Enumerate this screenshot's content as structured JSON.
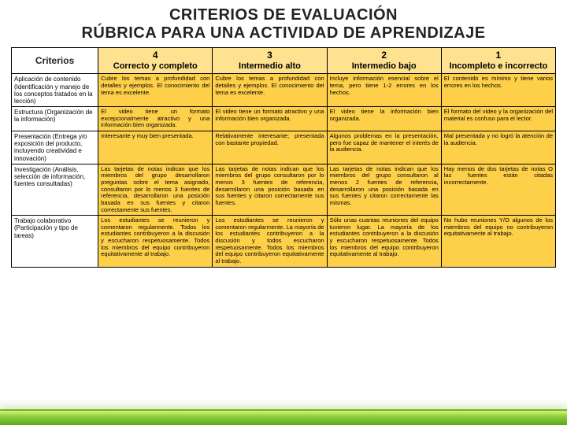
{
  "title_line1": "CRITERIOS DE EVALUACIÓN",
  "title_line2": "RÚBRICA PARA UNA ACTIVIDAD DE APRENDIZAJE",
  "colors": {
    "header_cell_bg": "#fee28f",
    "body_cell_bg": "#fed04a",
    "criteria_bg": "#ffffff",
    "border": "#000000",
    "title_color": "#222222",
    "footer_gradient": [
      "#d9f27a",
      "#8fcf3c",
      "#5aa61c"
    ]
  },
  "typography": {
    "title_fontsize_pt": 15,
    "header_fontsize_pt": 9,
    "criteria_fontsize_pt": 6,
    "body_fontsize_pt": 5.5,
    "font_family": "Arial"
  },
  "table": {
    "type": "table",
    "criteria_header": "Criterios",
    "levels": [
      {
        "num": "4",
        "label": "Correcto y completo"
      },
      {
        "num": "3",
        "label": "Intermedio alto"
      },
      {
        "num": "2",
        "label": "Intermedio bajo"
      },
      {
        "num": "1",
        "label": "Incompleto e incorrecto"
      }
    ],
    "rows": [
      {
        "criterion": "Aplicación de contenido (Identificación y manejo de los conceptos tratados en la lección)",
        "cells": [
          "Cubre los temas a profundidad con detalles y ejemplos. El conocimiento del tema es excelente.",
          "Cubre los temas a profundidad con detalles y ejemplos. El conocimiento del tema es excelente.",
          "Incluye información esencial sobre el tema, pero tiene 1-2 errores en los hechos.",
          "El contenido es mínimo y tiene varios errores en los hechos."
        ]
      },
      {
        "criterion": "Estructura (Organización de la información)",
        "cells": [
          "El video tiene un formato excepcionalmente atractivo y una información bien organizada.",
          "El video tiene un formato atractivo y una información bien organizada.",
          "El video tiene la información bien organizada.",
          "El formato del video y la organización del material es confuso para el lector."
        ]
      },
      {
        "criterion": "Presentación (Entrega y/o exposición del producto, incluyendo creatividad e innovación)",
        "cells": [
          "Interesante y muy bien presentada.",
          "Relativamente interesante; presentada con bastante propiedad.",
          "Algunos problemas en la presentación, pero fue capaz de mantener el interés de la audiencia.",
          "Mal presentada y no logró la atención de la audiencia."
        ]
      },
      {
        "criterion": "Investigación (Análisis, selección de información, fuentes consultadas)",
        "cells": [
          "Las tarjetas de notas indican que los miembros del grupo desarrollaron preguntas sobre el tema asignado, consultaron por lo menos 3 fuentes de referencia, desarrollaron una posición basada en sus fuentes y citaron correctamente sus fuentes.",
          "Las tarjetas de notas indican que los miembros del grupo consultaron por lo menos 3 fuentes de referencia, desarrollaron una posición basada en sus fuentes y citaron correctamente sus fuentes.",
          "Las tarjetas de notas indican que los miembros del grupo consultaron al menos 2 fuentes de referencia, desarrollaron una posición basada en sus fuentes y citaron correctamente las mismas.",
          "Hay menos de dos tarjetas de notas O las fuentes están citadas incorrectamente."
        ]
      },
      {
        "criterion": "Trabajo colaborativo (Participación y tipo de tareas)",
        "cells": [
          "Los estudiantes se reunieron y comentaron regularmente. Todos los estudiantes contribuyeron a la discusión y escucharon respetuosamente. Todos los miembros del equipo contribuyeron equitativamente al trabajo.",
          "Los estudiantes se reunieron y comentaron regularmente. La mayoría de los estudiantes contribuyeron a la discusión y todos escucharon respetuosamente. Todos los miembros del equipo contribuyeron equitativamente al trabajo.",
          "Sólo unas cuantas reuniones del equipo tuvieron lugar. La mayoría de los estudiantes contribuyeron a la discusión y escucharon respetuosamente. Todos los miembros del equipo contribuyeron equitativamente al trabajo.",
          "No hubo reuniones Y/O algunos de los miembros del equipo no contribuyeron equitativamente al trabajo."
        ]
      }
    ]
  }
}
